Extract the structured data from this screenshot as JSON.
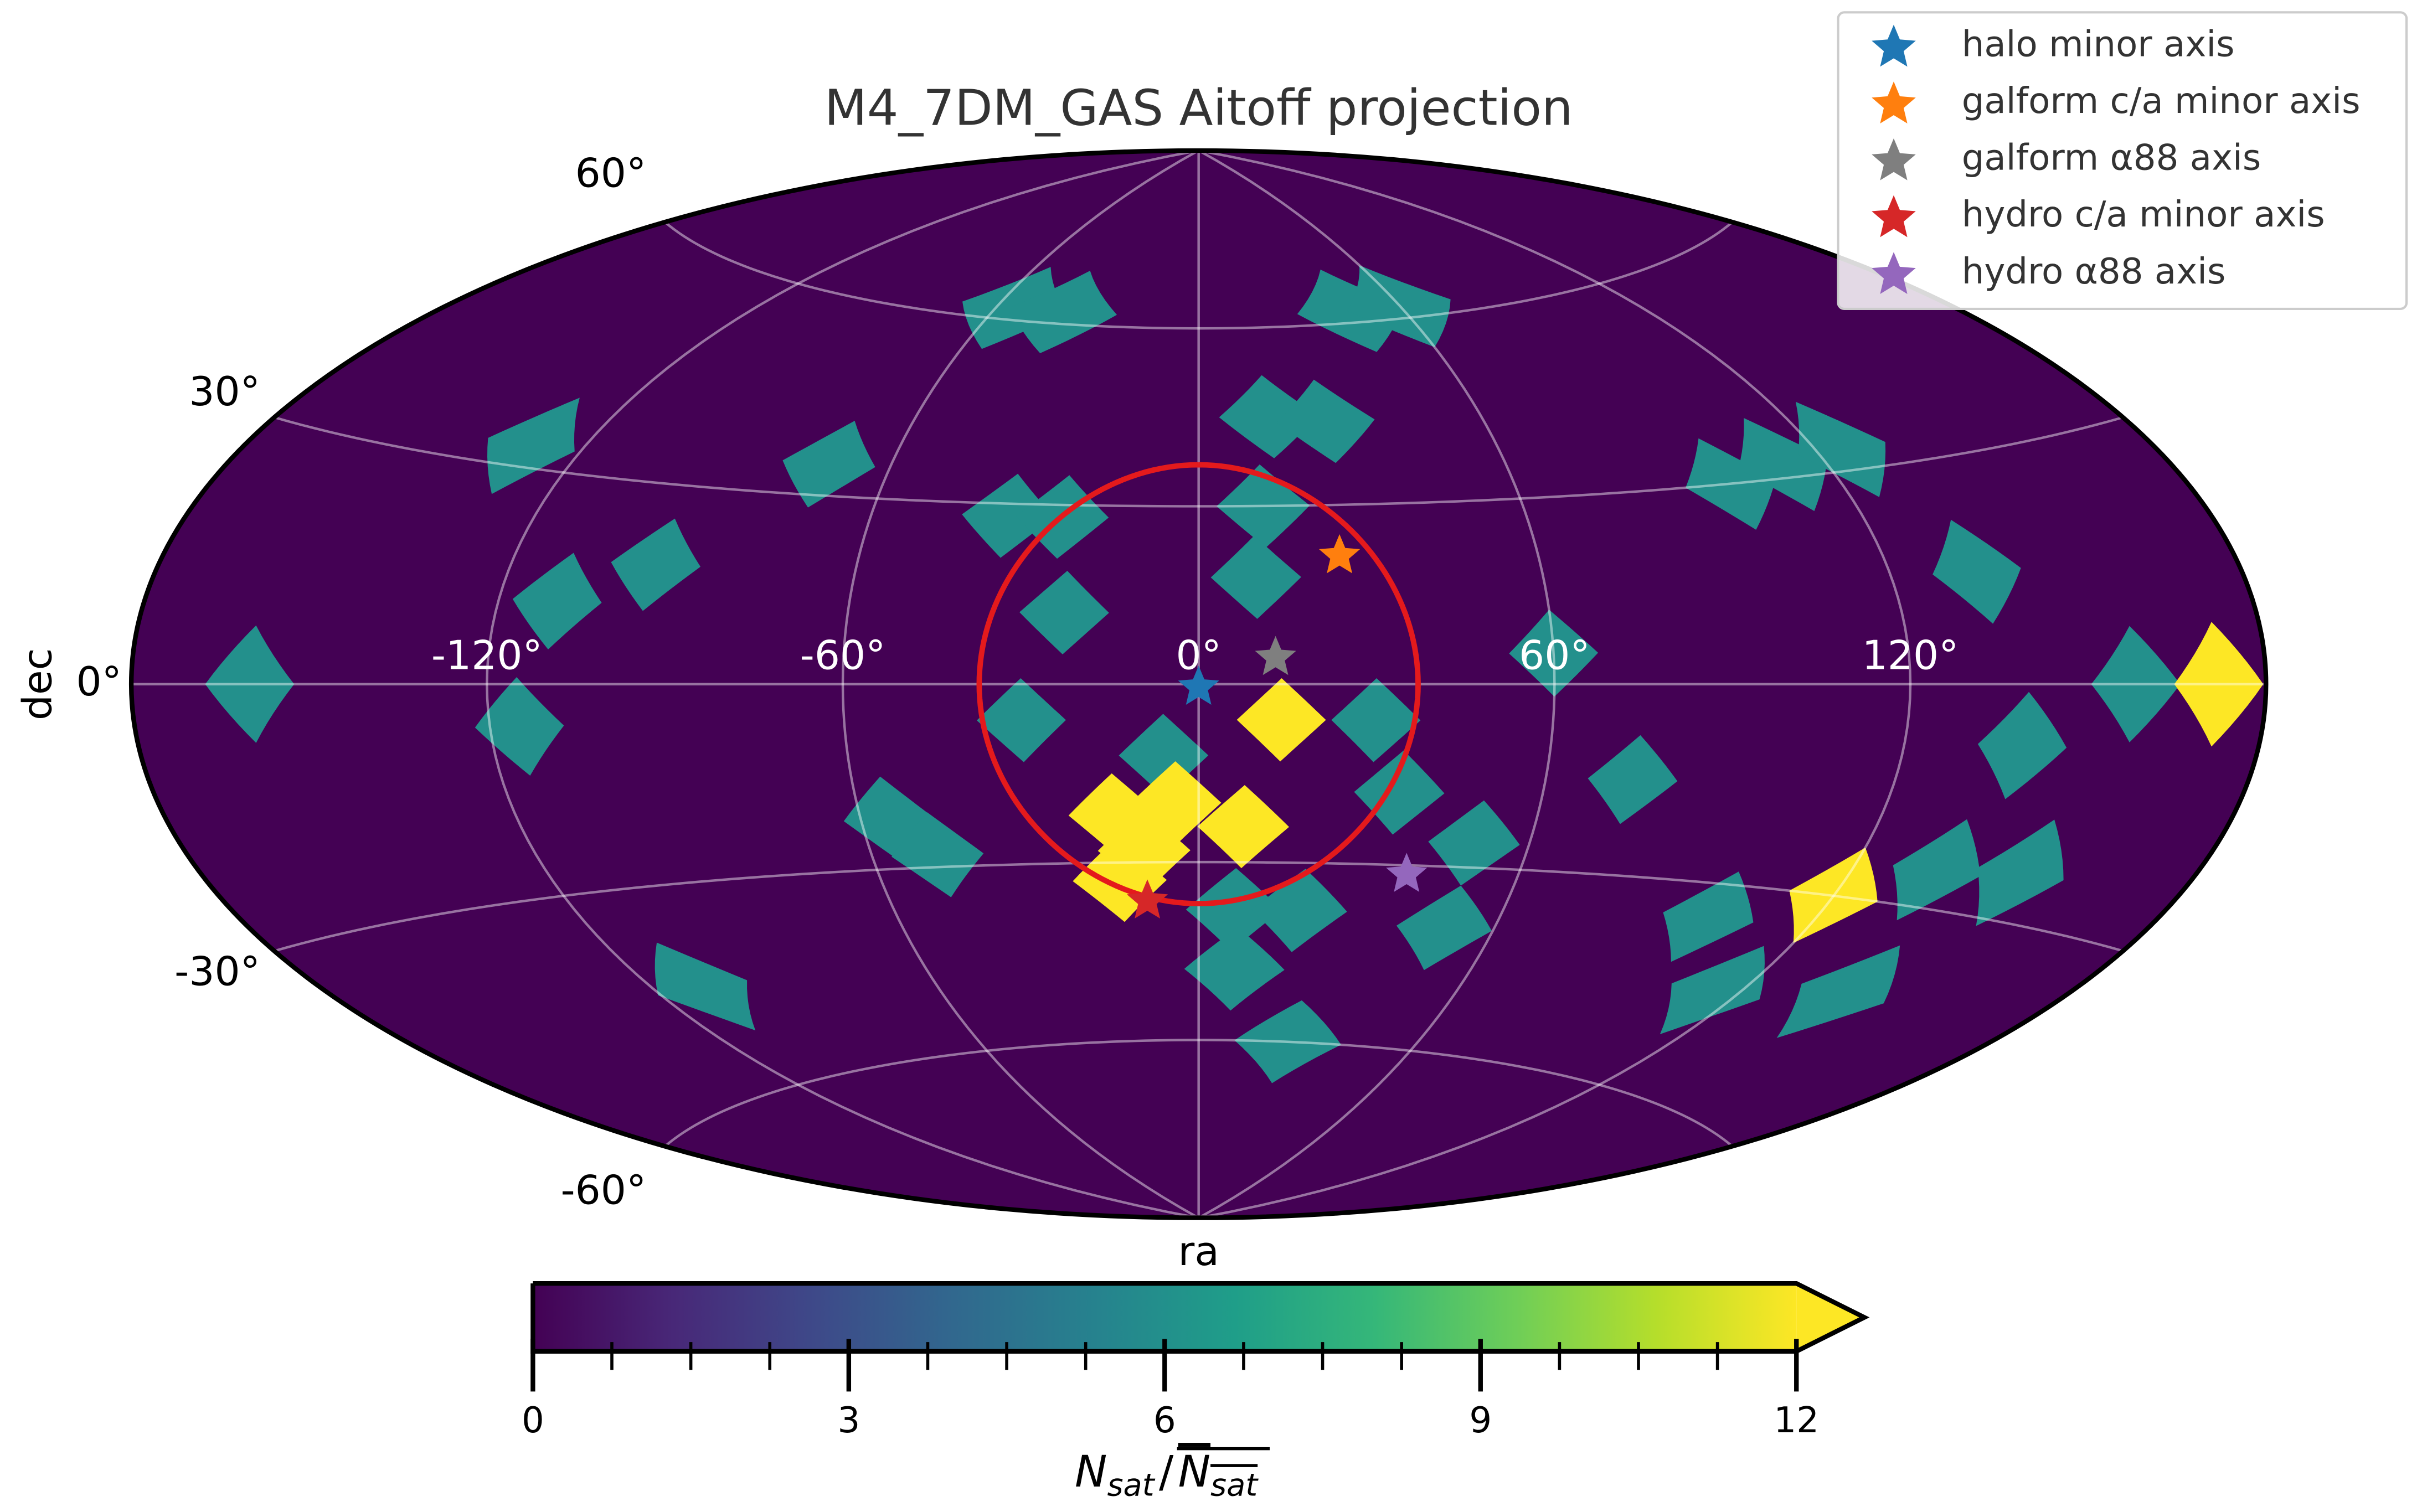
{
  "chart_data": {
    "type": "aitoff",
    "title": "M4_7DM_GAS Aitoff projection",
    "xlabel": "ra",
    "ylabel": "dec",
    "xticks": [
      {
        "value": -120,
        "label": "-120°"
      },
      {
        "value": -60,
        "label": "-60°"
      },
      {
        "value": 0,
        "label": "0°"
      },
      {
        "value": 60,
        "label": "60°"
      },
      {
        "value": 120,
        "label": "120°"
      }
    ],
    "yticks": [
      {
        "value": -60,
        "label": "-60°"
      },
      {
        "value": -30,
        "label": "-30°"
      },
      {
        "value": 0,
        "label": "0°"
      },
      {
        "value": 30,
        "label": "30°"
      },
      {
        "value": 60,
        "label": "60°"
      }
    ],
    "grid": true,
    "colormap": [
      "#440154",
      "#482878",
      "#3e4989",
      "#31688e",
      "#26828e",
      "#1f9e89",
      "#35b779",
      "#6ece58",
      "#b5de2b",
      "#fde725"
    ],
    "colorbar": {
      "lim": [
        0,
        12
      ],
      "ticks": [
        0,
        3,
        6,
        9,
        12
      ],
      "extend": "max",
      "label_parts": [
        "N",
        "sat",
        "/",
        "N",
        "sat"
      ]
    },
    "cells": [
      {
        "ra": -55,
        "dec": 62,
        "value": 6
      },
      {
        "ra": -40,
        "dec": 62,
        "value": 6
      },
      {
        "ra": 45,
        "dec": 62,
        "value": 6
      },
      {
        "ra": 60,
        "dec": 62,
        "value": 6
      },
      {
        "ra": 15,
        "dec": 45,
        "value": 6
      },
      {
        "ra": 27,
        "dec": 44,
        "value": 6
      },
      {
        "ra": -130,
        "dec": 33,
        "value": 6
      },
      {
        "ra": -72,
        "dec": 35,
        "value": 6
      },
      {
        "ra": 100,
        "dec": 30,
        "value": 6
      },
      {
        "ra": 112,
        "dec": 32,
        "value": 6
      },
      {
        "ra": 125,
        "dec": 33,
        "value": 6
      },
      {
        "ra": -35,
        "dec": 28,
        "value": 6
      },
      {
        "ra": -25,
        "dec": 28,
        "value": 6
      },
      {
        "ra": 12,
        "dec": 30,
        "value": 6
      },
      {
        "ra": 10,
        "dec": 18,
        "value": 6
      },
      {
        "ra": -95,
        "dec": 18,
        "value": 6
      },
      {
        "ra": -110,
        "dec": 12,
        "value": 6
      },
      {
        "ra": 135,
        "dec": 15,
        "value": 6
      },
      {
        "ra": -23,
        "dec": 12,
        "value": 6
      },
      {
        "ra": 60,
        "dec": 5,
        "value": 6
      },
      {
        "ra": -160,
        "dec": 0,
        "value": 6
      },
      {
        "ra": 158,
        "dec": 0,
        "value": 6
      },
      {
        "ra": 172,
        "dec": 0,
        "value": 12
      },
      {
        "ra": -115,
        "dec": -6,
        "value": 6
      },
      {
        "ra": -30,
        "dec": -6,
        "value": 6
      },
      {
        "ra": 30,
        "dec": -6,
        "value": 6
      },
      {
        "ra": 14,
        "dec": -6,
        "value": 12
      },
      {
        "ra": 140,
        "dec": -8,
        "value": 6
      },
      {
        "ra": -6,
        "dec": -12,
        "value": 6
      },
      {
        "ra": -15,
        "dec": -22,
        "value": 12
      },
      {
        "ra": -4,
        "dec": -20,
        "value": 12
      },
      {
        "ra": 8,
        "dec": -24,
        "value": 12
      },
      {
        "ra": -10,
        "dec": -28,
        "value": 12
      },
      {
        "ra": -15,
        "dec": -33,
        "value": 12
      },
      {
        "ra": 75,
        "dec": -15,
        "value": 6
      },
      {
        "ra": -55,
        "dec": -22,
        "value": 6
      },
      {
        "ra": -48,
        "dec": -28,
        "value": 6
      },
      {
        "ra": 35,
        "dec": -18,
        "value": 6
      },
      {
        "ra": 50,
        "dec": -26,
        "value": 6
      },
      {
        "ra": 120,
        "dec": -30,
        "value": 12
      },
      {
        "ra": 135,
        "dec": -25,
        "value": 6
      },
      {
        "ra": 150,
        "dec": -24,
        "value": 6
      },
      {
        "ra": 100,
        "dec": -35,
        "value": 6
      },
      {
        "ra": 7,
        "dec": -38,
        "value": 6
      },
      {
        "ra": 20,
        "dec": -38,
        "value": 6
      },
      {
        "ra": 8,
        "dec": -48,
        "value": 6
      },
      {
        "ra": 50,
        "dec": -40,
        "value": 6
      },
      {
        "ra": -110,
        "dec": -45,
        "value": 6
      },
      {
        "ra": 115,
        "dec": -45,
        "value": 6
      },
      {
        "ra": 140,
        "dec": -42,
        "value": 6
      },
      {
        "ra": 25,
        "dec": -60,
        "value": 6
      }
    ],
    "circle": {
      "ra": 0,
      "dec": 0,
      "radius": 37,
      "color": "#e41a1c"
    },
    "series": [
      {
        "name": "halo minor axis",
        "color": "#1f77b4",
        "ra": [
          0
        ],
        "dec": [
          0
        ]
      },
      {
        "name": "galform c/a minor axis",
        "color": "#ff7f0e",
        "ra": [
          25
        ],
        "dec": [
          22
        ]
      },
      {
        "name": "galform α88 axis",
        "color": "#7f7f7f",
        "ra": [
          13
        ],
        "dec": [
          5
        ]
      },
      {
        "name": "hydro c/a minor axis",
        "color": "#d62728",
        "ra": [
          -10
        ],
        "dec": [
          -36
        ]
      },
      {
        "name": "hydro α88 axis",
        "color": "#9467bd",
        "ra": [
          39
        ],
        "dec": [
          -31
        ]
      }
    ],
    "legend": "upper right"
  }
}
